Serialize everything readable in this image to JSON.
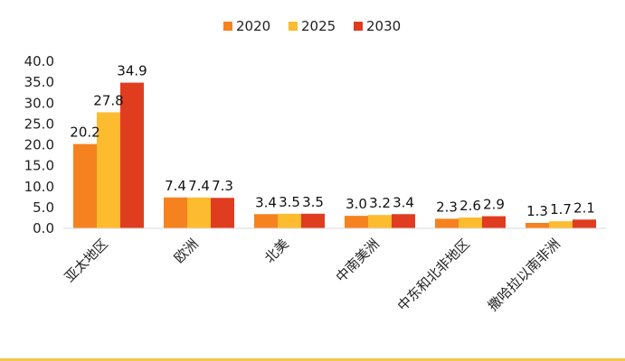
{
  "chart_data": {
    "type": "bar",
    "title": "",
    "xlabel": "",
    "ylabel": "",
    "categories": [
      "亚太地区",
      "欧洲",
      "北美",
      "中南美洲",
      "中东和北非地区",
      "撒哈拉以南非洲"
    ],
    "series": [
      {
        "name": "2020",
        "color": "#f5821f",
        "values": [
          20.2,
          7.4,
          3.4,
          3.0,
          2.3,
          1.3
        ]
      },
      {
        "name": "2025",
        "color": "#fdbb2f",
        "values": [
          27.8,
          7.4,
          3.5,
          3.2,
          2.6,
          1.7
        ]
      },
      {
        "name": "2030",
        "color": "#e03c1f",
        "values": [
          34.9,
          7.3,
          3.5,
          3.4,
          2.9,
          2.1
        ]
      }
    ],
    "ylim": [
      0,
      40
    ],
    "yticks": [
      0,
      5,
      10,
      15,
      20,
      25,
      30,
      35,
      40
    ],
    "ytick_labels": [
      "0.0",
      "5.0",
      "10.0",
      "15.0",
      "20.0",
      "25.0",
      "30.0",
      "35.0",
      "40.0"
    ],
    "data_label_decimals": 1,
    "grid": false,
    "legend_position": "top-center"
  }
}
